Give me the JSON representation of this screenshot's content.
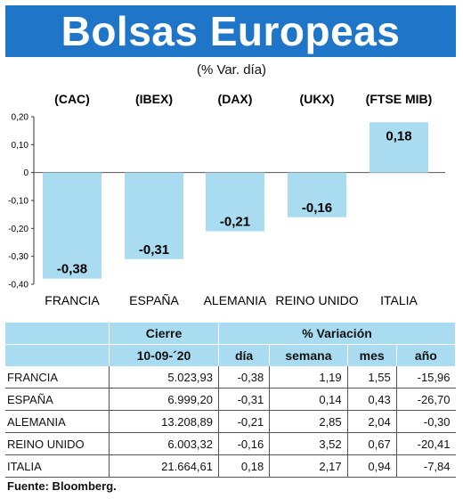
{
  "title": "Bolsas Europeas",
  "subtitle": "(% Var. día)",
  "chart_data": {
    "type": "bar",
    "indices": [
      "(CAC)",
      "(IBEX)",
      "(DAX)",
      "(UKX)",
      "(FTSE MIB)"
    ],
    "categories": [
      "FRANCIA",
      "ESPAÑA",
      "ALEMANIA",
      "REINO UNIDO",
      "ITALIA"
    ],
    "values": [
      -0.38,
      -0.31,
      -0.21,
      -0.16,
      0.18
    ],
    "value_labels": [
      "-0,38",
      "-0,31",
      "-0,21",
      "-0,16",
      "0,18"
    ],
    "ylim": [
      -0.4,
      0.2
    ],
    "yticks": [
      0.2,
      0.1,
      0,
      -0.1,
      -0.2,
      -0.3,
      -0.4
    ],
    "ytick_labels": [
      "0,20",
      "0,10",
      "0",
      "-0,10",
      "-0,20",
      "-0,30",
      "-0,40"
    ],
    "bar_color": "#a9dcf1",
    "grid": false
  },
  "table": {
    "group_headers": [
      "Cierre",
      "% Variación"
    ],
    "columns": [
      "10-09-´20",
      "día",
      "semana",
      "mes",
      "año"
    ],
    "rows": [
      [
        "FRANCIA",
        "5.023,93",
        "-0,38",
        "1,19",
        "1,55",
        "-15,96"
      ],
      [
        "ESPAÑA",
        "6.999,20",
        "-0,31",
        "0,14",
        "0,43",
        "-26,70"
      ],
      [
        "ALEMANIA",
        "13.208,89",
        "-0,21",
        "2,85",
        "2,04",
        "-0,30"
      ],
      [
        "REINO UNIDO",
        "6.003,32",
        "-0,16",
        "3,52",
        "0,67",
        "-20,41"
      ],
      [
        "ITALIA",
        "21.664,61",
        "0,18",
        "2,17",
        "0,94",
        "-7,84"
      ]
    ]
  },
  "source": "Fuente: Bloomberg.",
  "colors": {
    "header_bg": "#1f75c8",
    "bar": "#a9dcf1",
    "table_header": "#a9dcf1"
  }
}
